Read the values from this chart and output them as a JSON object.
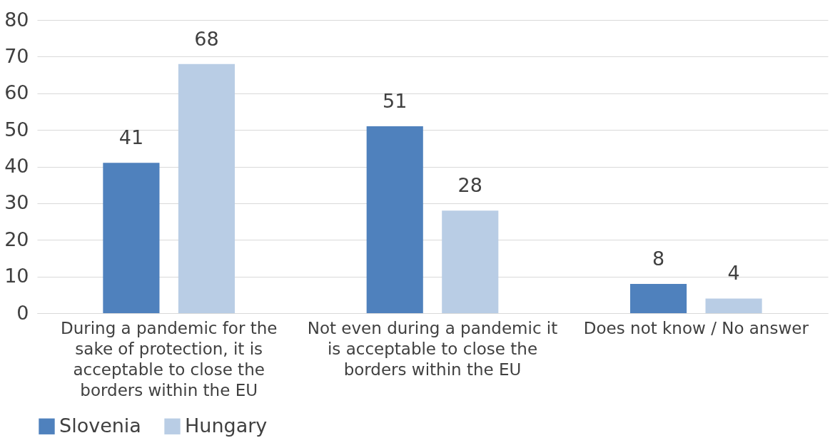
{
  "chart_data": {
    "type": "bar",
    "categories": [
      "During a pandemic for the sake of protection, it is acceptable to close the borders within the EU",
      "Not even during a pandemic it is acceptable to close the borders within the EU",
      "Does not know / No answer"
    ],
    "series": [
      {
        "name": "Slovenia",
        "color": "#4f81bd",
        "values": [
          41,
          51,
          8
        ]
      },
      {
        "name": "Hungary",
        "color": "#b9cde5",
        "values": [
          68,
          28,
          4
        ]
      }
    ],
    "ylim": [
      0,
      80
    ],
    "yticks": [
      0,
      10,
      20,
      30,
      40,
      50,
      60,
      70,
      80
    ],
    "grid": "y",
    "legend": "bottom",
    "data_labels": true
  }
}
